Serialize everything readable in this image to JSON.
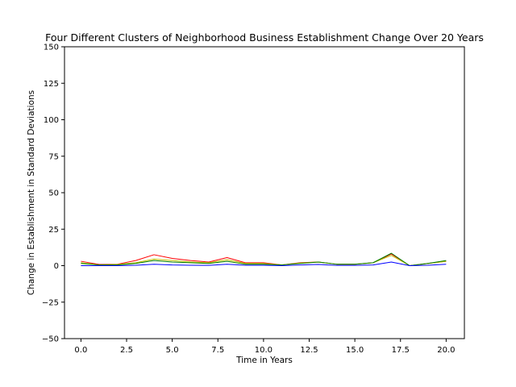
{
  "chart_data": {
    "type": "line",
    "title": "Four Different Clusters of Neighborhood Business Establishment Change Over 20 Years",
    "xlabel": "Time in Years",
    "ylabel": "Change in Establishment in Standard Deviations",
    "xlim": [
      -0.9,
      21.0
    ],
    "ylim": [
      -50,
      150
    ],
    "xticks": [
      0.0,
      2.5,
      5.0,
      7.5,
      10.0,
      12.5,
      15.0,
      17.5,
      20.0
    ],
    "xtick_labels": [
      "0.0",
      "2.5",
      "5.0",
      "7.5",
      "10.0",
      "12.5",
      "15.0",
      "17.5",
      "20.0"
    ],
    "yticks": [
      -50,
      -25,
      0,
      25,
      50,
      75,
      100,
      125,
      150
    ],
    "ytick_labels": [
      "−50",
      "−25",
      "0",
      "25",
      "50",
      "75",
      "100",
      "125",
      "150"
    ],
    "grid": false,
    "x": [
      0,
      1,
      2,
      3,
      4,
      5,
      6,
      7,
      8,
      9,
      10,
      11,
      12,
      13,
      14,
      15,
      16,
      17,
      18,
      19,
      20
    ],
    "series": [
      {
        "color": "#ff0000",
        "values": [
          3.0,
          0.8,
          1.0,
          3.5,
          7.5,
          5.0,
          3.5,
          2.5,
          5.5,
          2.0,
          2.0,
          0.5,
          2.0,
          2.5,
          1.0,
          1.0,
          2.0,
          8.0,
          0.0,
          1.5,
          3.0
        ]
      },
      {
        "color": "#bfbf00",
        "values": [
          2.0,
          0.5,
          0.8,
          2.0,
          4.5,
          3.5,
          2.5,
          2.0,
          4.0,
          1.5,
          1.5,
          0.5,
          1.8,
          2.5,
          1.0,
          1.0,
          2.0,
          7.0,
          0.0,
          1.5,
          3.0
        ]
      },
      {
        "color": "#008000",
        "values": [
          1.5,
          0.5,
          0.5,
          1.5,
          3.5,
          2.5,
          2.0,
          1.5,
          3.0,
          1.0,
          1.0,
          0.5,
          1.5,
          2.5,
          1.0,
          1.0,
          2.0,
          8.5,
          0.0,
          1.5,
          3.5
        ]
      },
      {
        "color": "#0000ff",
        "values": [
          0.0,
          0.0,
          0.0,
          0.3,
          1.0,
          0.5,
          0.3,
          0.2,
          1.0,
          0.3,
          0.3,
          0.0,
          0.5,
          0.8,
          0.2,
          0.2,
          0.5,
          2.5,
          0.0,
          0.3,
          1.0
        ]
      }
    ]
  }
}
